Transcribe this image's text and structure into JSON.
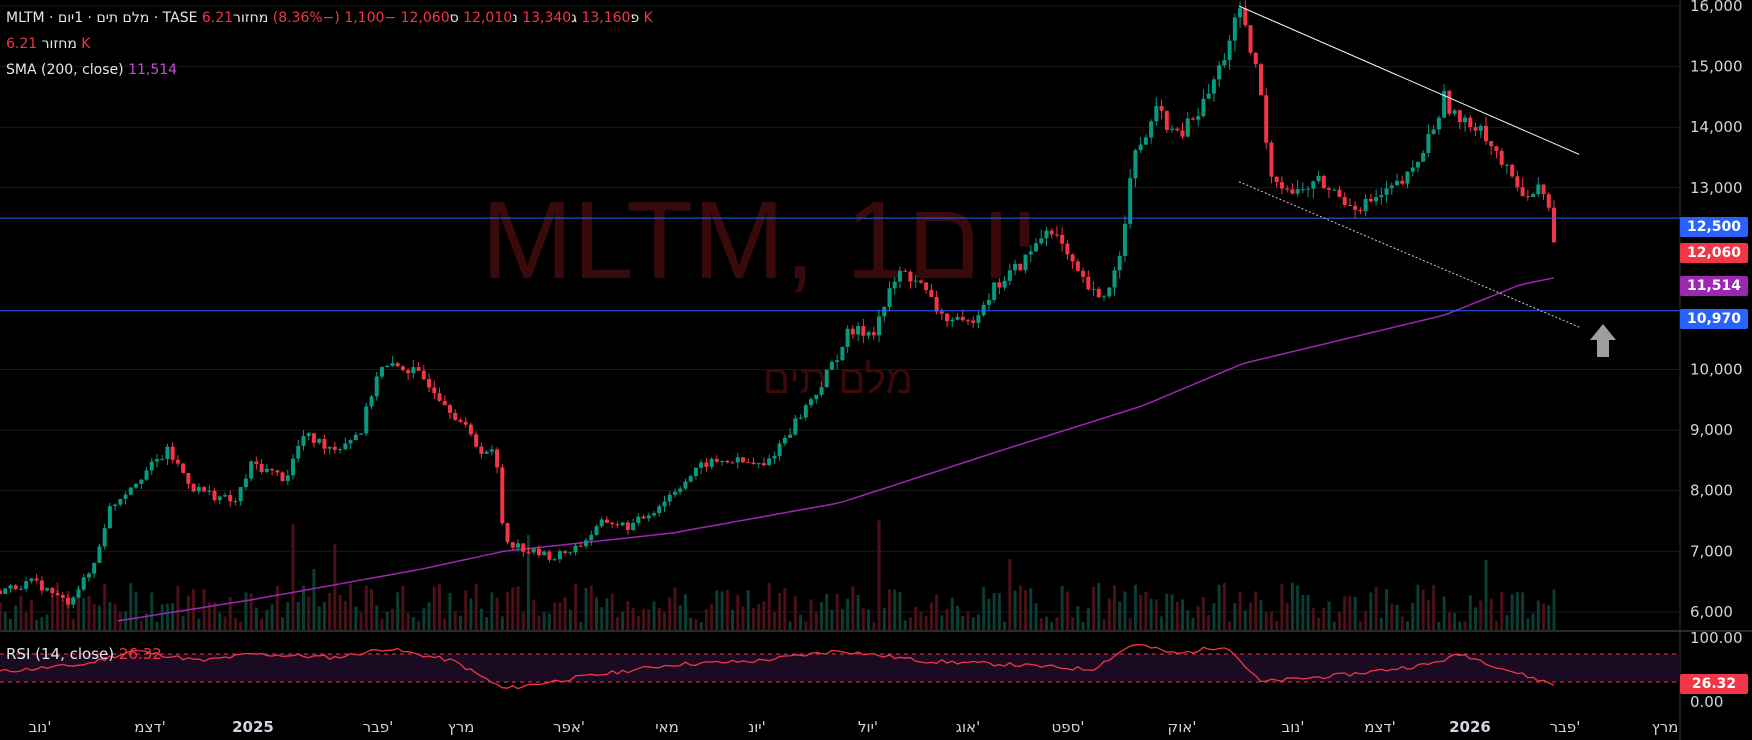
{
  "colors": {
    "background": "#000000",
    "up": "#089981",
    "down": "#f23645",
    "sma": "#9c27b0",
    "rsi": "#f23645",
    "hline": "#2962ff",
    "grid": "#1a1a1a",
    "axis_text": "#d1d4dc"
  },
  "header": {
    "symbol_line": "MLTM · מלם תים · 1יום · TASE",
    "o_label": "פ",
    "o_value": "13,160",
    "h_label": "ג",
    "h_value": "13,340",
    "l_label": "נ",
    "l_value": "12,010",
    "c_label": "ס",
    "c_value": "12,060",
    "change": "−1,100 (−8.36%)",
    "vol_label": "מחזור",
    "vol_value": "6.21 K",
    "vol_line_label": "מחזור",
    "vol_line_value": "6.21 K",
    "sma_label": "SMA (200, close)",
    "sma_value": "11,514"
  },
  "watermark": {
    "symbol": "MLTM, 1יום",
    "name": "מלם תים"
  },
  "rsi": {
    "label": "RSI (14, close)",
    "value": "26.32",
    "axis_labels": [
      "100.00",
      "0.00"
    ]
  },
  "price_badges": [
    {
      "value": "12,500",
      "color": "#2962ff"
    },
    {
      "value": "12,060",
      "color": "#f23645"
    },
    {
      "value": "11,514",
      "color": "#9c27b0"
    },
    {
      "value": "10,970",
      "color": "#2962ff"
    }
  ],
  "chart_data": {
    "type": "candlestick",
    "symbol": "MLTM",
    "exchange": "TASE",
    "timeframe": "1D",
    "y_axis_ticks": [
      "16,000",
      "15,000",
      "14,000",
      "13,000",
      "10,000",
      "9,000",
      "8,000",
      "7,000",
      "6,000"
    ],
    "ylim": [
      5700,
      16100
    ],
    "x_axis_labels": [
      "נוב'",
      "דצמ'",
      "2025",
      "פבר'",
      "מרץ",
      "אפר'",
      "מאי",
      "יונ'",
      "יול'",
      "אוג'",
      "ספט'",
      "אוק'",
      "נוב'",
      "דצמ'",
      "2026",
      "פבר'",
      "מרץ"
    ],
    "horizontal_lines": [
      12500,
      10970
    ],
    "trendline_upper": [
      [
        0.7375,
        16000
      ],
      [
        0.94,
        13550
      ]
    ],
    "trendline_lower": [
      [
        0.7375,
        13100
      ],
      [
        0.94,
        10700
      ]
    ],
    "close_path": [
      [
        0.0,
        6350
      ],
      [
        0.02,
        6500
      ],
      [
        0.04,
        6150
      ],
      [
        0.055,
        6700
      ],
      [
        0.065,
        7700
      ],
      [
        0.08,
        8150
      ],
      [
        0.1,
        8650
      ],
      [
        0.115,
        8050
      ],
      [
        0.13,
        7900
      ],
      [
        0.14,
        7800
      ],
      [
        0.15,
        8450
      ],
      [
        0.17,
        8200
      ],
      [
        0.18,
        8900
      ],
      [
        0.2,
        8700
      ],
      [
        0.215,
        9000
      ],
      [
        0.225,
        10000
      ],
      [
        0.24,
        10050
      ],
      [
        0.255,
        9800
      ],
      [
        0.27,
        9300
      ],
      [
        0.285,
        8700
      ],
      [
        0.295,
        8600
      ],
      [
        0.3,
        7200
      ],
      [
        0.315,
        7000
      ],
      [
        0.33,
        6900
      ],
      [
        0.345,
        7100
      ],
      [
        0.36,
        7500
      ],
      [
        0.375,
        7400
      ],
      [
        0.39,
        7700
      ],
      [
        0.405,
        8100
      ],
      [
        0.42,
        8450
      ],
      [
        0.435,
        8500
      ],
      [
        0.455,
        8400
      ],
      [
        0.47,
        9000
      ],
      [
        0.49,
        9800
      ],
      [
        0.505,
        10600
      ],
      [
        0.52,
        10650
      ],
      [
        0.535,
        11600
      ],
      [
        0.545,
        11500
      ],
      [
        0.56,
        10900
      ],
      [
        0.575,
        10700
      ],
      [
        0.59,
        11300
      ],
      [
        0.61,
        11800
      ],
      [
        0.625,
        12400
      ],
      [
        0.64,
        11600
      ],
      [
        0.655,
        11100
      ],
      [
        0.665,
        11700
      ],
      [
        0.675,
        13500
      ],
      [
        0.69,
        14300
      ],
      [
        0.7,
        13800
      ],
      [
        0.715,
        14300
      ],
      [
        0.725,
        14900
      ],
      [
        0.7375,
        15900
      ],
      [
        0.75,
        14700
      ],
      [
        0.755,
        13300
      ],
      [
        0.77,
        12900
      ],
      [
        0.785,
        13100
      ],
      [
        0.8,
        12800
      ],
      [
        0.81,
        12700
      ],
      [
        0.825,
        12900
      ],
      [
        0.84,
        13200
      ],
      [
        0.85,
        13800
      ],
      [
        0.86,
        14500
      ],
      [
        0.87,
        14000
      ],
      [
        0.88,
        14100
      ],
      [
        0.89,
        13600
      ],
      [
        0.9,
        13100
      ],
      [
        0.91,
        12900
      ],
      [
        0.92,
        13000
      ],
      [
        0.925,
        12060
      ]
    ],
    "sma_path": [
      [
        0.07,
        5850
      ],
      [
        0.15,
        6200
      ],
      [
        0.25,
        6700
      ],
      [
        0.3,
        7000
      ],
      [
        0.4,
        7300
      ],
      [
        0.5,
        7800
      ],
      [
        0.6,
        8700
      ],
      [
        0.68,
        9400
      ],
      [
        0.74,
        10100
      ],
      [
        0.8,
        10500
      ],
      [
        0.86,
        10900
      ],
      [
        0.905,
        11400
      ],
      [
        0.925,
        11514
      ]
    ],
    "rsi_path": [
      [
        0.0,
        45
      ],
      [
        0.05,
        55
      ],
      [
        0.08,
        75
      ],
      [
        0.12,
        60
      ],
      [
        0.15,
        70
      ],
      [
        0.2,
        65
      ],
      [
        0.23,
        78
      ],
      [
        0.27,
        60
      ],
      [
        0.3,
        20
      ],
      [
        0.34,
        35
      ],
      [
        0.4,
        55
      ],
      [
        0.45,
        60
      ],
      [
        0.5,
        75
      ],
      [
        0.55,
        60
      ],
      [
        0.6,
        55
      ],
      [
        0.65,
        48
      ],
      [
        0.675,
        85
      ],
      [
        0.7,
        70
      ],
      [
        0.73,
        82
      ],
      [
        0.75,
        30
      ],
      [
        0.8,
        40
      ],
      [
        0.85,
        55
      ],
      [
        0.87,
        70
      ],
      [
        0.9,
        45
      ],
      [
        0.925,
        26.32
      ]
    ],
    "rsi_bands": [
      70,
      30
    ],
    "series": [
      {
        "name": "SMA (200, close)",
        "last": 11514
      },
      {
        "name": "RSI (14, close)",
        "last": 26.32
      }
    ]
  }
}
